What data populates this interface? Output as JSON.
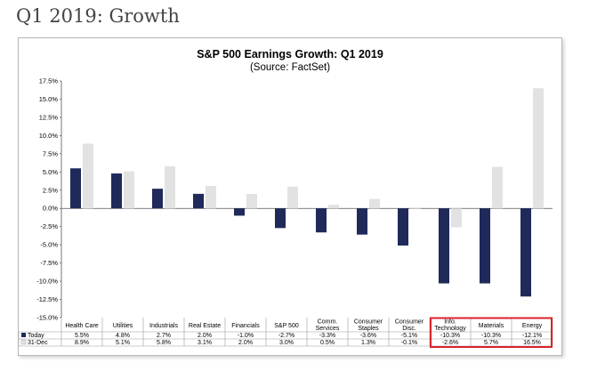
{
  "page": {
    "heading": "Q1 2019: Growth"
  },
  "chart_data": {
    "type": "bar",
    "title": "S&P 500 Earnings Growth: Q1 2019",
    "subtitle": "(Source: FactSet)",
    "categories": [
      [
        "Health Care"
      ],
      [
        "Utilities"
      ],
      [
        "Industrials"
      ],
      [
        "Real Estate"
      ],
      [
        "Financials"
      ],
      [
        "S&P 500"
      ],
      [
        "Comm.",
        "Services"
      ],
      [
        "Consumer",
        "Staples"
      ],
      [
        "Consumer",
        "Disc."
      ],
      [
        "Info.",
        "Technology"
      ],
      [
        "Materials"
      ],
      [
        "Energy"
      ]
    ],
    "series": [
      {
        "name": "Today",
        "color": "#1f2a5a",
        "values": [
          5.5,
          4.8,
          2.7,
          2.0,
          -1.0,
          -2.7,
          -3.3,
          -3.6,
          -5.1,
          -10.3,
          -10.3,
          -12.1
        ],
        "labels": [
          "5.5%",
          "4.8%",
          "2.7%",
          "2.0%",
          "-1.0%",
          "-2.7%",
          "-3.3%",
          "-3.6%",
          "-5.1%",
          "-10.3%",
          "-10.3%",
          "-12.1%"
        ]
      },
      {
        "name": "31-Dec",
        "color": "#e2e2e2",
        "values": [
          8.9,
          5.1,
          5.8,
          3.1,
          2.0,
          3.0,
          0.5,
          1.3,
          -0.1,
          -2.6,
          5.7,
          16.5
        ],
        "labels": [
          "8.9%",
          "5.1%",
          "5.8%",
          "3.1%",
          "2.0%",
          "3.0%",
          "0.5%",
          "1.3%",
          "-0.1%",
          "-2.6%",
          "5.7%",
          "16.5%"
        ]
      }
    ],
    "yticks": [
      "17.5%",
      "15.0%",
      "12.5%",
      "10.0%",
      "7.5%",
      "5.0%",
      "2.5%",
      "0.0%",
      "-2.5%",
      "-5.0%",
      "-7.5%",
      "-10.0%",
      "-12.5%",
      "-15.0%"
    ],
    "ylim": [
      -15,
      17.5
    ],
    "ytick_step": 2.5,
    "grid": false,
    "legend": "table-left",
    "highlight": {
      "categories": [
        "Info. Technology",
        "Materials",
        "Energy"
      ],
      "color": "#d9232a"
    }
  }
}
